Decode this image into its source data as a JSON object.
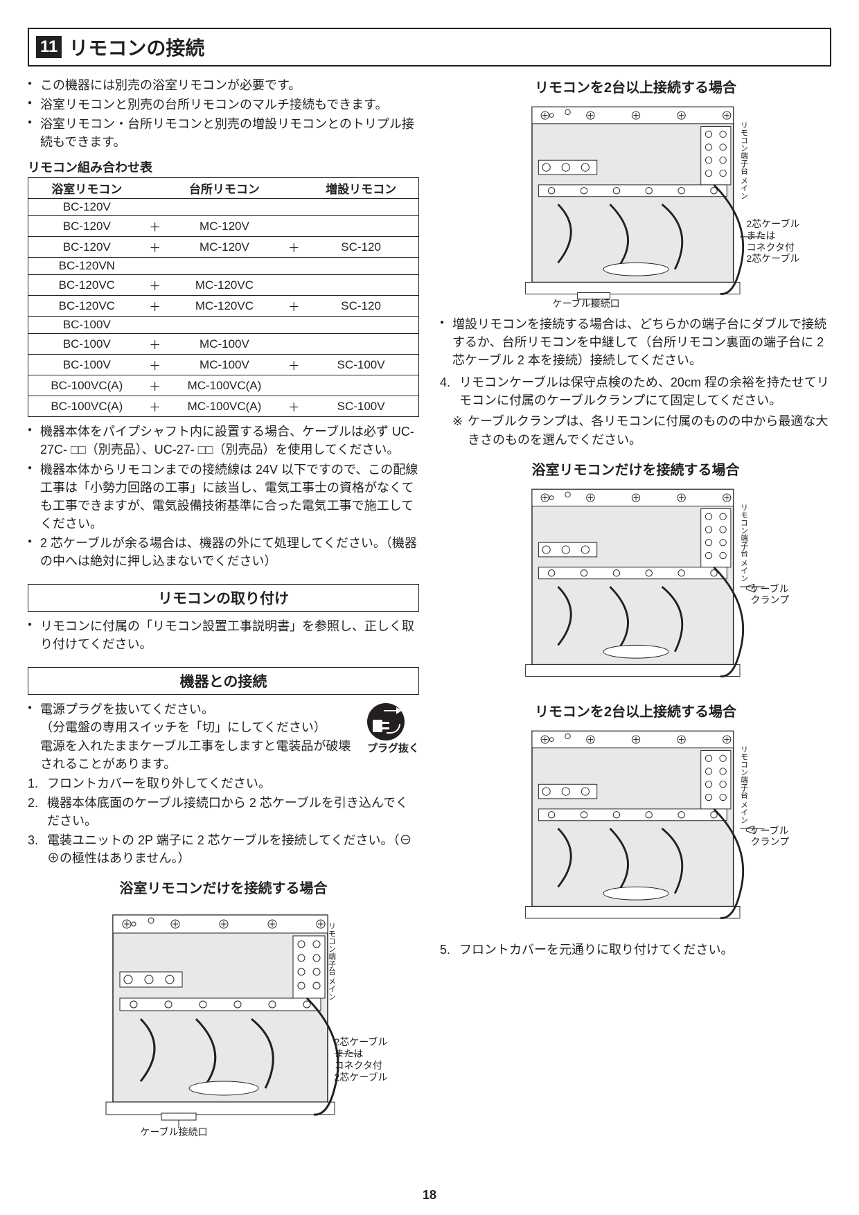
{
  "header": {
    "number": "11",
    "title": "リモコンの接続"
  },
  "intro_bullets": [
    "この機器には別売の浴室リモコンが必要です。",
    "浴室リモコンと別売の台所リモコンのマルチ接続もできます。",
    "浴室リモコン・台所リモコンと別売の増設リモコンとのトリプル接続もできます。"
  ],
  "table": {
    "caption": "リモコン組み合わせ表",
    "headers": [
      "浴室リモコン",
      "",
      "台所リモコン",
      "",
      "増設リモコン"
    ],
    "rows": [
      [
        "BC-120V",
        "",
        "",
        "",
        ""
      ],
      [
        "BC-120V",
        "＋",
        "MC-120V",
        "",
        ""
      ],
      [
        "BC-120V",
        "＋",
        "MC-120V",
        "＋",
        "SC-120"
      ],
      [
        "BC-120VN",
        "",
        "",
        "",
        ""
      ],
      [
        "BC-120VC",
        "＋",
        "MC-120VC",
        "",
        ""
      ],
      [
        "BC-120VC",
        "＋",
        "MC-120VC",
        "＋",
        "SC-120"
      ],
      [
        "BC-100V",
        "",
        "",
        "",
        ""
      ],
      [
        "BC-100V",
        "＋",
        "MC-100V",
        "",
        ""
      ],
      [
        "BC-100V",
        "＋",
        "MC-100V",
        "＋",
        "SC-100V"
      ],
      [
        "BC-100VC(A)",
        "＋",
        "MC-100VC(A)",
        "",
        ""
      ],
      [
        "BC-100VC(A)",
        "＋",
        "MC-100VC(A)",
        "＋",
        "SC-100V"
      ]
    ]
  },
  "after_table_bullets": [
    "機器本体をパイプシャフト内に設置する場合、ケーブルは必ず UC-27C- □□（別売品）、UC-27- □□（別売品）を使用してください。",
    "機器本体からリモコンまでの接続線は 24V 以下ですので、この配線工事は「小勢力回路の工事」に該当し、電気工事士の資格がなくても工事できますが、電気設備技術基準に合った電気工事で施工してください。",
    "2 芯ケーブルが余る場合は、機器の外にて処理してください。（機器の中へは絶対に押し込まないでください）"
  ],
  "sec_install": {
    "heading": "リモコンの取り付け",
    "bullet": "リモコンに付属の「リモコン設置工事説明書」を参照し、正しく取り付けてください。"
  },
  "sec_connect": {
    "heading": "機器との接続",
    "plug_caption": "プラグ抜く",
    "bullet": "電源プラグを抜いてください。",
    "bullet_sub1": "（分電盤の専用スイッチを「切」にしてください）",
    "bullet_sub2": "電源を入れたままケーブル工事をしますと電装品が破壊されることがあります。",
    "steps_1_3": [
      "フロントカバーを取り外してください。",
      "機器本体底面のケーブル接続口から 2 芯ケーブルを引き込んでください。",
      "電装ユニットの 2P 端子に 2 芯ケーブルを接続してください。（⊖ ⊕の極性はありません。）"
    ]
  },
  "diagrams": {
    "bath_only": "浴室リモコンだけを接続する場合",
    "multi": "リモコンを2台以上接続する場合",
    "label_cable_port": "ケーブル接続口",
    "label_2core": "2芯ケーブル\nまたは\nコネクタ付\n2芯ケーブル",
    "label_clamp": "ケーブル\nクランプ",
    "label_terminal": "リモコン端子台\nメイン"
  },
  "right_col": {
    "bullet": "増設リモコンを接続する場合は、どちらかの端子台にダブルで接続するか、台所リモコンを中継して（台所リモコン裏面の端子台に 2 芯ケーブル 2 本を接続）接続してください。",
    "step4": "リモコンケーブルは保守点検のため、20cm 程の余裕を持たせてリモコンに付属のケーブルクランプにて固定してください。",
    "step4_note": "ケーブルクランプは、各リモコンに付属のものの中から最適な大きさのものを選んでください。",
    "step5": "フロントカバーを元通りに取り付けてください。"
  },
  "page_number": "18",
  "colors": {
    "ink": "#231f20",
    "bg": "#ffffff",
    "diagram_fill": "#e8e8e6"
  }
}
